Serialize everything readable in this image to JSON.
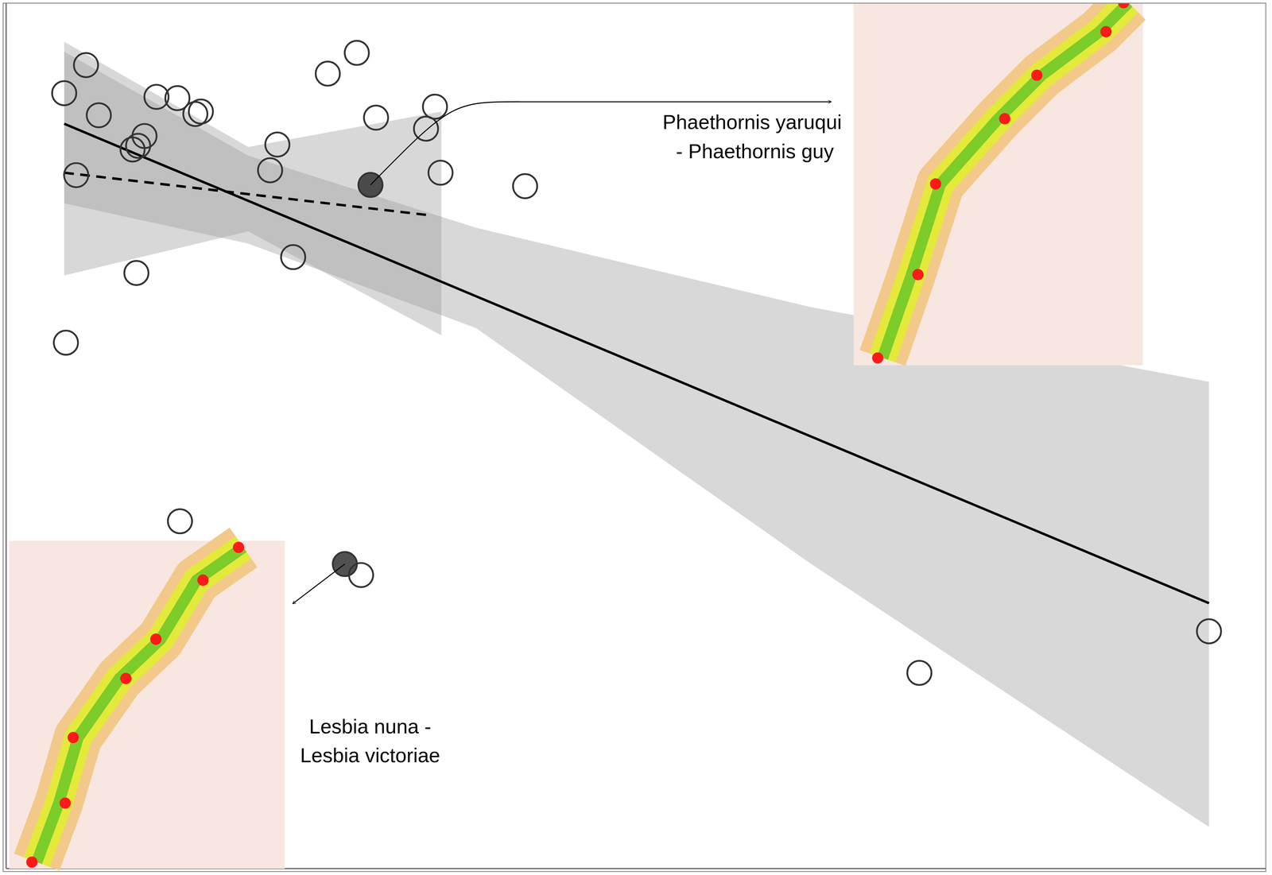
{
  "chart_data": {
    "type": "scatter",
    "xlim": [
      -0.1,
      2.85
    ],
    "ylim": [
      -0.9,
      6.18
    ],
    "xticks": [
      0,
      1,
      2
    ],
    "yticks": [
      0,
      1,
      2,
      3,
      4,
      5
    ],
    "grid": true,
    "tick_labels": false,
    "points": {
      "marker": "open circle",
      "color": "#333333",
      "x": [
        0.087,
        0.036,
        0.117,
        0.252,
        0.301,
        0.343,
        0.356,
        0.224,
        0.209,
        0.196,
        0.064,
        0.653,
        0.721,
        0.535,
        0.518,
        0.766,
        0.904,
        0.883,
        0.917,
        1.115,
        0.572,
        0.205,
        0.04,
        0.307,
        0.731,
        2.038,
        2.716
      ],
      "y": [
        5.67,
        5.44,
        5.26,
        5.41,
        5.4,
        5.27,
        5.29,
        5.09,
        5.01,
        4.98,
        4.77,
        5.6,
        5.77,
        5.02,
        4.81,
        5.24,
        5.33,
        5.15,
        4.79,
        4.68,
        4.1,
        3.97,
        3.4,
        1.94,
        1.5,
        0.7,
        1.04
      ]
    },
    "highlighted": {
      "marker": "filled circle",
      "color": "#333333",
      "x": [
        0.753,
        0.693
      ],
      "y": [
        4.69,
        1.59
      ]
    },
    "fits": [
      {
        "line_style": "solid",
        "color": "#000000",
        "x": [
          0.036,
          2.716
        ],
        "y": [
          5.19,
          1.27
        ],
        "band": {
          "color": "#9e9e9e",
          "x": [
            0.036,
            0.467,
            1.0,
            1.785,
            2.716
          ],
          "lower": [
            4.54,
            4.21,
            3.52,
            1.59,
            -0.56
          ],
          "upper": [
            5.78,
            4.93,
            4.34,
            3.69,
            3.08
          ]
        }
      },
      {
        "line_style": "dashed",
        "color": "#000000",
        "x": [
          0.036,
          0.896
        ],
        "y": [
          4.79,
          4.44
        ],
        "band": {
          "color": "#9e9e9e",
          "x": [
            0.036,
            0.467,
            0.919
          ],
          "lower": [
            3.95,
            4.31,
            3.46
          ],
          "upper": [
            5.86,
            5.0,
            5.29
          ]
        }
      }
    ],
    "annotations": [
      {
        "text": [
          "Phaethornis yaruqui",
          " - Phaethornis guy"
        ]
      },
      {
        "text": [
          "Lesbia nuna -",
          "Lesbia victoriae"
        ]
      }
    ]
  }
}
